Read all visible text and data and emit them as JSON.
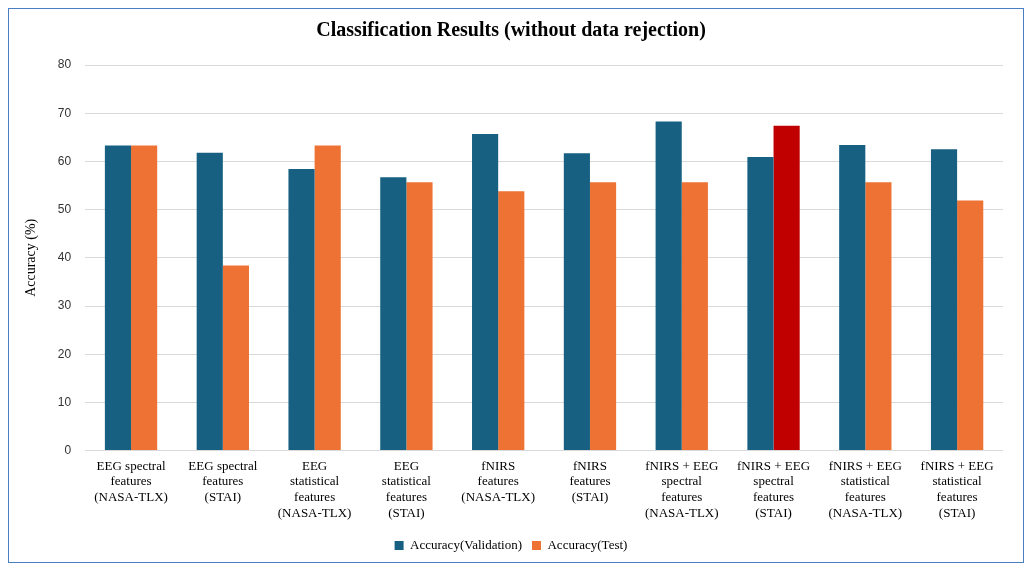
{
  "chart_data": {
    "type": "bar",
    "title": "Classification Results (without data rejection)",
    "ylabel": "Accuracy (%)",
    "categories": [
      "EEG spectral features (NASA-TLX)",
      "EEG spectral features (STAI)",
      "EEG statistical features (NASA-TLX)",
      "EEG statistical features (STAI)",
      "fNIRS features (NASA-TLX)",
      "fNIRS features (STAI)",
      "fNIRS + EEG spectral features (NASA-TLX)",
      "fNIRS + EEG spectral features (STAI)",
      "fNIRS + EEG statistical features (NASA-TLX)",
      "fNIRS + EEG statistical features (STAI)"
    ],
    "series": [
      {
        "name": "Accuracy(Validation)",
        "color": "#176082",
        "values": [
          63.3,
          61.8,
          58.4,
          56.7,
          65.7,
          61.7,
          68.3,
          60.9,
          63.4,
          62.5
        ]
      },
      {
        "name": "Accuracy(Test)",
        "color": "#ed7233",
        "colors": [
          "#ed7233",
          "#ed7233",
          "#ed7233",
          "#ed7233",
          "#ed7233",
          "#ed7233",
          "#ed7233",
          "#c00000",
          "#ed7233",
          "#ed7233"
        ],
        "values": [
          63.3,
          38.4,
          63.3,
          55.7,
          53.8,
          55.7,
          55.7,
          67.4,
          55.7,
          51.9
        ]
      }
    ],
    "ylim": [
      0,
      80
    ],
    "yticks": [
      0,
      10,
      20,
      30,
      40,
      50,
      60,
      70,
      80
    ],
    "grid": "y",
    "legend": "bottom"
  }
}
